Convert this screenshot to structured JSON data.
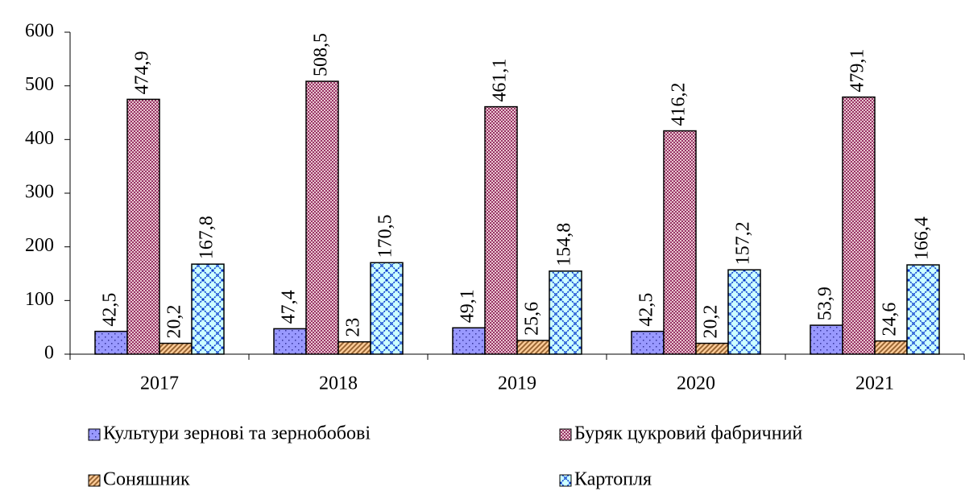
{
  "chart_data": {
    "type": "bar",
    "categories": [
      "2017",
      "2018",
      "2019",
      "2020",
      "2021"
    ],
    "series": [
      {
        "name": "Культури зернові та зернобобові",
        "color": "#9999ff",
        "pattern": "dots",
        "values": [
          42.5,
          47.4,
          49.1,
          42.5,
          53.9
        ],
        "value_labels": [
          "42,5",
          "47,4",
          "49,1",
          "42,5",
          "53,9"
        ]
      },
      {
        "name": "Буряк цукровий фабричний",
        "color": "#cc99aa",
        "pattern": "checker",
        "values": [
          474.9,
          508.5,
          461.1,
          416.2,
          479.1
        ],
        "value_labels": [
          "474,9",
          "508,5",
          "461,1",
          "416,2",
          "479,1"
        ]
      },
      {
        "name": "Соняшник",
        "color": "#ffcc99",
        "pattern": "diagonal",
        "values": [
          20.2,
          23,
          25.6,
          20.2,
          24.6
        ],
        "value_labels": [
          "20,2",
          "23",
          "25,6",
          "20,2",
          "24,6"
        ]
      },
      {
        "name": "Картопля",
        "color": "#ccffff",
        "pattern": "cross",
        "values": [
          167.8,
          170.5,
          154.8,
          157.2,
          166.4
        ],
        "value_labels": [
          "167,8",
          "170,5",
          "154,8",
          "157,2",
          "166,4"
        ]
      }
    ],
    "ylim": [
      0,
      600
    ],
    "yticks": [
      0,
      100,
      200,
      300,
      400,
      500,
      600
    ],
    "grid": false,
    "legend": "bottom"
  }
}
